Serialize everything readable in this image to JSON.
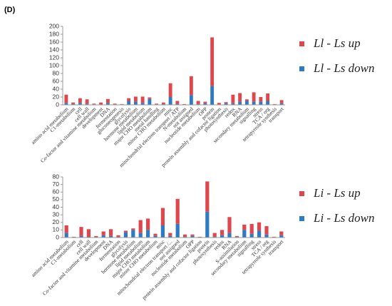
{
  "panel_label": "(D)",
  "chart_data": [
    {
      "type": "bar",
      "categories": [
        "amino acid metabolism",
        "C1-metabolism",
        "cell",
        "cell wall",
        "Co-factor and vitamine metabolism",
        "development",
        "DNA",
        "fermentation",
        "gluconeogenesis",
        "glycolysis",
        "hormone metabolism",
        "lipid metabolism",
        "major CHO metabolism",
        "metal handling",
        "minor CHO metabolism",
        "misc",
        "mitochondrial electron transport / ATP",
        "N-metabolism",
        "not assigned",
        "nucleotide metabolism",
        "OPP",
        "protein",
        "protein assembly and cofactor ligation",
        "photosynthesis",
        "redox",
        "RNA",
        "secondary metabolism",
        "signalling",
        "stress",
        "TCA / org",
        "tetrapyrrole synthesis",
        "transport"
      ],
      "series": [
        {
          "name": "Ll - Ls up",
          "color": "#e0474c",
          "values": [
            21,
            4,
            12,
            11,
            2,
            5,
            10,
            2,
            1,
            7,
            13,
            16,
            4,
            2,
            4,
            35,
            7,
            2,
            48,
            8,
            4,
            124,
            4,
            3,
            22,
            22,
            4,
            24,
            12,
            19,
            1,
            8
          ]
        },
        {
          "name": "Ll - Ls down",
          "color": "#2e7bc4",
          "values": [
            5,
            2,
            5,
            3,
            1,
            1,
            5,
            1,
            1,
            10,
            8,
            5,
            15,
            1,
            2,
            20,
            3,
            0,
            25,
            2,
            4,
            48,
            1,
            4,
            4,
            8,
            10,
            8,
            8,
            10,
            1,
            4
          ]
        }
      ],
      "ylim": [
        0,
        200
      ],
      "yticks": [
        0,
        20,
        40,
        60,
        80,
        100,
        120,
        140,
        160,
        180,
        200
      ]
    },
    {
      "type": "bar",
      "categories": [
        "amino acid metabolism",
        "C1-metabolism",
        "cell",
        "cell wall",
        "Co-factor and vitamine metabolism",
        "development",
        "DNA",
        "fermentation",
        "glycolysis",
        "hormone metabolism",
        "lipid metabolism",
        "major CHO metabolism",
        "minor CHO metabolism",
        "misc",
        "mitochondrial electron transport /...",
        "not assigned",
        "nucleotide metabolism",
        "OPP",
        "protein assembly and cofactor ligation",
        "protein",
        "photosynthesis",
        "redox",
        "RNA",
        "S-assimilation",
        "secondary metabolism",
        "signalling",
        "stress",
        "TCA / org",
        "tetrapyrrole synthesis",
        "transport"
      ],
      "series": [
        {
          "name": "Li - Ls up",
          "color": "#e0474c",
          "values": [
            10,
            1,
            12,
            10,
            1,
            5,
            9,
            2,
            2,
            2,
            17,
            15,
            3,
            23,
            4,
            33,
            3,
            2,
            1,
            40,
            5,
            7,
            21,
            1,
            7,
            13,
            11,
            11,
            1,
            5
          ]
        },
        {
          "name": "Li - Ls down",
          "color": "#2e7bc4",
          "values": [
            6,
            0,
            2,
            1,
            1,
            3,
            2,
            1,
            7,
            10,
            6,
            10,
            2,
            16,
            2,
            18,
            1,
            2,
            0,
            34,
            1,
            3,
            6,
            1,
            10,
            5,
            9,
            4,
            0,
            3
          ]
        }
      ],
      "ylim": [
        0,
        80
      ],
      "yticks": [
        0,
        10,
        20,
        30,
        40,
        50,
        60,
        70,
        80
      ]
    }
  ]
}
